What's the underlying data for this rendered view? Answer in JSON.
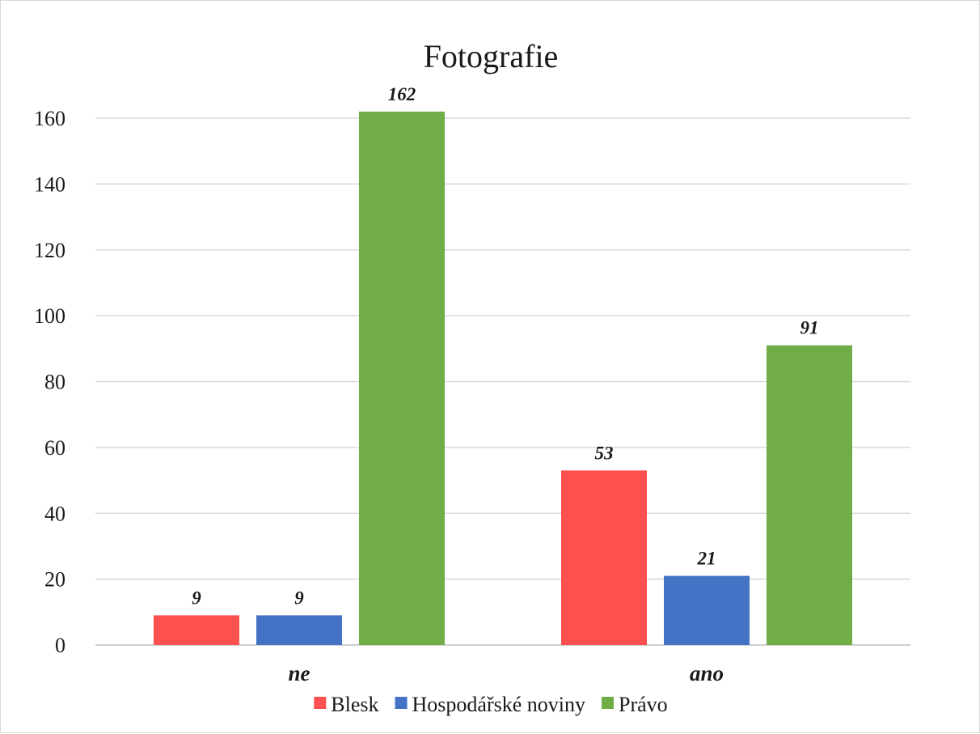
{
  "chart_data": {
    "type": "bar",
    "title": "Fotografie",
    "xlabel": "",
    "ylabel": "",
    "categories": [
      "ne",
      "ano"
    ],
    "series": [
      {
        "name": "Blesk",
        "color": "#ff5050",
        "values": [
          9,
          53
        ]
      },
      {
        "name": "Hospodářské noviny",
        "color": "#4472c4",
        "values": [
          9,
          21
        ]
      },
      {
        "name": "Právo",
        "color": "#70ad47",
        "values": [
          162,
          91
        ]
      }
    ],
    "ylim": [
      0,
      160
    ],
    "yticks": [
      0,
      20,
      40,
      60,
      80,
      100,
      120,
      140,
      160
    ],
    "grid": true,
    "legend": "bottom",
    "data_labels": true
  }
}
